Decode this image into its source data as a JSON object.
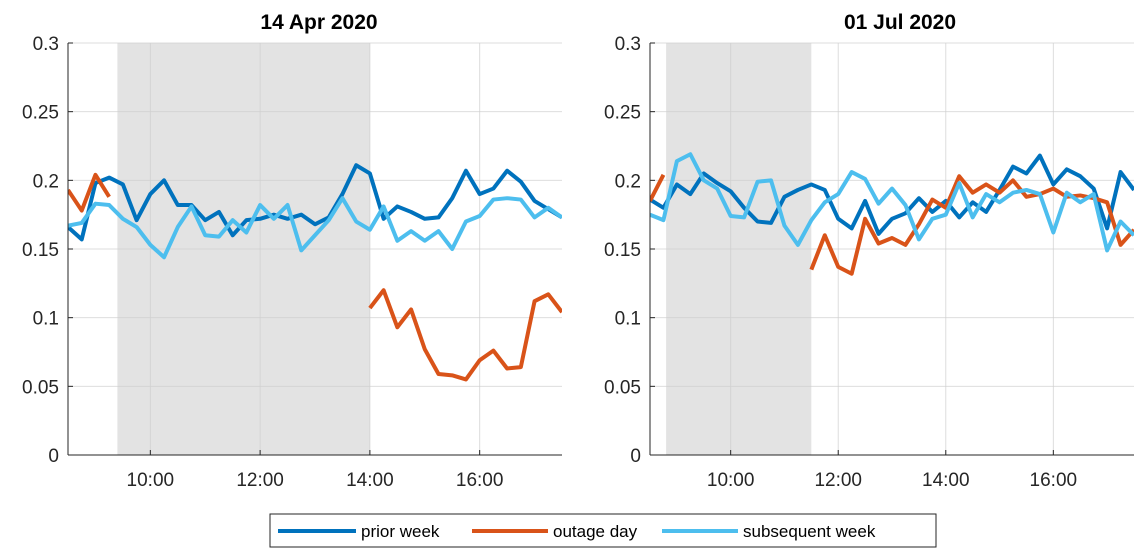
{
  "colors": {
    "prior_week": "#0072BD",
    "outage_day": "#D95319",
    "subsequent_week": "#4DBEEE",
    "shade": "#e3e3e3",
    "grid": "#dfdfdf",
    "axis": "#262626"
  },
  "legend": {
    "placement": "bottom-center",
    "entries": [
      {
        "key": "prior_week",
        "label": "prior week"
      },
      {
        "key": "outage_day",
        "label": "outage day"
      },
      {
        "key": "subsequent_week",
        "label": "subsequent week"
      }
    ]
  },
  "chart_data": [
    {
      "type": "line",
      "title": "14 Apr 2020",
      "xlim": [
        8.5,
        17.5
      ],
      "ylim": [
        0,
        0.3
      ],
      "xticks": [
        10,
        12,
        14,
        16
      ],
      "xtick_labels": [
        "10:00",
        "12:00",
        "14:00",
        "16:00"
      ],
      "yticks": [
        0,
        0.05,
        0.1,
        0.15,
        0.2,
        0.25,
        0.3
      ],
      "ytick_labels": [
        "0",
        "0.05",
        "0.1",
        "0.15",
        "0.2",
        "0.25",
        "0.3"
      ],
      "grid": true,
      "shaded_region": [
        9.4,
        14.0
      ],
      "series": [
        {
          "name": "prior week",
          "x": [
            8.5,
            8.75,
            9.0,
            9.25,
            9.5,
            9.75,
            10.0,
            10.25,
            10.5,
            10.75,
            11.0,
            11.25,
            11.5,
            11.75,
            12.0,
            12.25,
            12.5,
            12.75,
            13.0,
            13.25,
            13.5,
            13.75,
            14.0,
            14.25,
            14.5,
            14.75,
            15.0,
            15.25,
            15.5,
            15.75,
            16.0,
            16.25,
            16.5,
            16.75,
            17.0,
            17.25,
            17.5
          ],
          "y": [
            0.166,
            0.157,
            0.198,
            0.202,
            0.197,
            0.171,
            0.19,
            0.2,
            0.182,
            0.182,
            0.171,
            0.177,
            0.16,
            0.171,
            0.172,
            0.175,
            0.172,
            0.175,
            0.168,
            0.173,
            0.19,
            0.211,
            0.205,
            0.172,
            0.181,
            0.177,
            0.172,
            0.173,
            0.187,
            0.207,
            0.19,
            0.194,
            0.207,
            0.199,
            0.185,
            0.179,
            0.173
          ]
        },
        {
          "name": "outage day",
          "x": [
            8.5,
            8.75,
            9.0,
            9.25,
            null,
            14.0,
            14.25,
            14.5,
            14.75,
            15.0,
            15.25,
            15.5,
            15.75,
            16.0,
            16.25,
            16.5,
            16.75,
            17.0,
            17.25,
            17.5
          ],
          "y": [
            0.193,
            0.178,
            0.204,
            0.188,
            null,
            0.107,
            0.12,
            0.093,
            0.106,
            0.077,
            0.059,
            0.058,
            0.055,
            0.069,
            0.076,
            0.063,
            0.064,
            0.112,
            0.117,
            0.104
          ]
        },
        {
          "name": "subsequent week",
          "x": [
            8.5,
            8.75,
            9.0,
            9.25,
            9.5,
            9.75,
            10.0,
            10.25,
            10.5,
            10.75,
            11.0,
            11.25,
            11.5,
            11.75,
            12.0,
            12.25,
            12.5,
            12.75,
            13.0,
            13.25,
            13.5,
            13.75,
            14.0,
            14.25,
            14.5,
            14.75,
            15.0,
            15.25,
            15.5,
            15.75,
            16.0,
            16.25,
            16.5,
            16.75,
            17.0,
            17.25,
            17.5
          ],
          "y": [
            0.167,
            0.169,
            0.183,
            0.182,
            0.172,
            0.166,
            0.153,
            0.144,
            0.166,
            0.181,
            0.16,
            0.159,
            0.171,
            0.162,
            0.182,
            0.172,
            0.182,
            0.149,
            0.16,
            0.171,
            0.187,
            0.17,
            0.164,
            0.181,
            0.156,
            0.163,
            0.156,
            0.163,
            0.15,
            0.17,
            0.174,
            0.186,
            0.187,
            0.186,
            0.173,
            0.18,
            0.173
          ]
        }
      ]
    },
    {
      "type": "line",
      "title": "01 Jul 2020",
      "xlim": [
        8.5,
        17.5
      ],
      "ylim": [
        0,
        0.3
      ],
      "xticks": [
        10,
        12,
        14,
        16
      ],
      "xtick_labels": [
        "10:00",
        "12:00",
        "14:00",
        "16:00"
      ],
      "yticks": [
        0,
        0.05,
        0.1,
        0.15,
        0.2,
        0.25,
        0.3
      ],
      "ytick_labels": [
        "0",
        "0.05",
        "0.1",
        "0.15",
        "0.2",
        "0.25",
        "0.3"
      ],
      "grid": true,
      "shaded_region": [
        8.8,
        11.5
      ],
      "series": [
        {
          "name": "prior week",
          "x": [
            8.5,
            8.75,
            9.0,
            9.25,
            9.5,
            9.75,
            10.0,
            10.25,
            10.5,
            10.75,
            11.0,
            11.25,
            11.5,
            11.75,
            12.0,
            12.25,
            12.5,
            12.75,
            13.0,
            13.25,
            13.5,
            13.75,
            14.0,
            14.25,
            14.5,
            14.75,
            15.0,
            15.25,
            15.5,
            15.75,
            16.0,
            16.25,
            16.5,
            16.75,
            17.0,
            17.25,
            17.5
          ],
          "y": [
            0.186,
            0.18,
            0.197,
            0.19,
            0.205,
            0.198,
            0.192,
            0.18,
            0.17,
            0.169,
            0.188,
            0.193,
            0.197,
            0.193,
            0.172,
            0.165,
            0.185,
            0.161,
            0.172,
            0.176,
            0.187,
            0.177,
            0.185,
            0.173,
            0.184,
            0.177,
            0.193,
            0.21,
            0.205,
            0.218,
            0.197,
            0.208,
            0.203,
            0.194,
            0.165,
            0.206,
            0.193
          ]
        },
        {
          "name": "outage day",
          "x": [
            8.5,
            8.75,
            null,
            11.5,
            11.75,
            12.0,
            12.25,
            12.5,
            12.75,
            13.0,
            13.25,
            13.5,
            13.75,
            14.0,
            14.25,
            14.5,
            14.75,
            15.0,
            15.25,
            15.5,
            15.75,
            16.0,
            16.25,
            16.5,
            16.75,
            17.0,
            17.25,
            17.5
          ],
          "y": [
            0.185,
            0.204,
            null,
            0.135,
            0.16,
            0.137,
            0.132,
            0.172,
            0.154,
            0.158,
            0.153,
            0.168,
            0.186,
            0.18,
            0.203,
            0.191,
            0.197,
            0.191,
            0.2,
            0.188,
            0.19,
            0.194,
            0.188,
            0.189,
            0.187,
            0.184,
            0.153,
            0.164
          ]
        },
        {
          "name": "subsequent week",
          "x": [
            8.5,
            8.75,
            9.0,
            9.25,
            9.5,
            9.75,
            10.0,
            10.25,
            10.5,
            10.75,
            11.0,
            11.25,
            11.5,
            11.75,
            12.0,
            12.25,
            12.5,
            12.75,
            13.0,
            13.25,
            13.5,
            13.75,
            14.0,
            14.25,
            14.5,
            14.75,
            15.0,
            15.25,
            15.5,
            15.75,
            16.0,
            16.25,
            16.5,
            16.75,
            17.0,
            17.25,
            17.5
          ],
          "y": [
            0.175,
            0.171,
            0.214,
            0.219,
            0.2,
            0.194,
            0.174,
            0.173,
            0.199,
            0.2,
            0.167,
            0.153,
            0.171,
            0.184,
            0.19,
            0.206,
            0.201,
            0.183,
            0.194,
            0.182,
            0.157,
            0.172,
            0.175,
            0.198,
            0.173,
            0.19,
            0.184,
            0.191,
            0.193,
            0.19,
            0.162,
            0.191,
            0.184,
            0.19,
            0.149,
            0.17,
            0.16
          ]
        }
      ]
    }
  ]
}
